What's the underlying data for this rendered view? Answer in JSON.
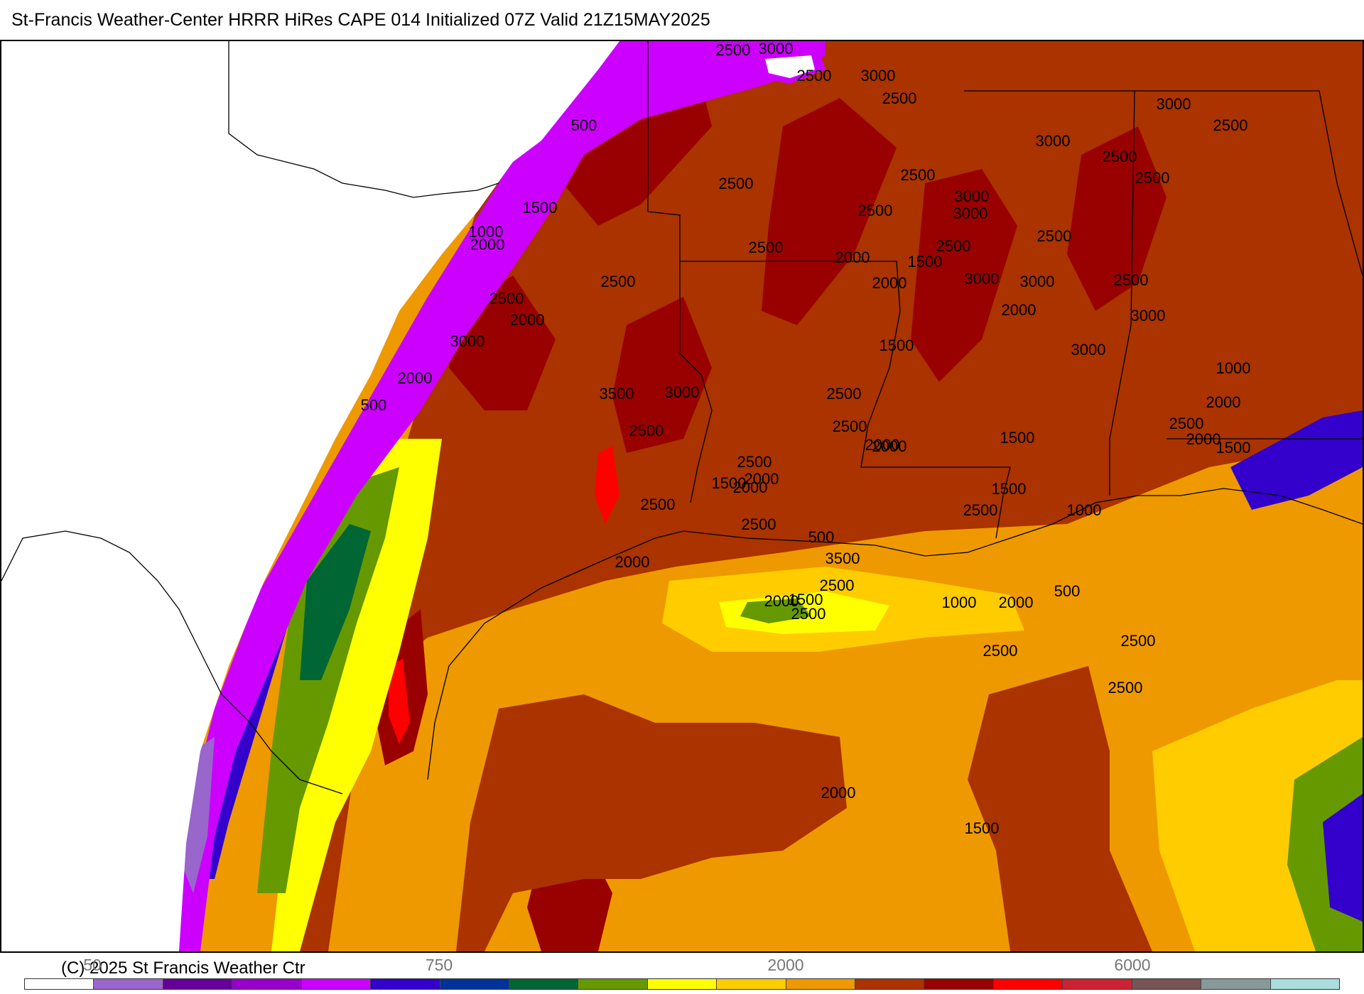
{
  "header": {
    "title": "St-Francis Weather-Center HRRR HiRes CAPE  014 Initialized  07Z Valid 21Z15MAY2025"
  },
  "footer": {
    "credit": "(C) 2025 St Francis Weather Ctr"
  },
  "colorbar": {
    "labels": [
      "50",
      "750",
      "2000",
      "6000"
    ],
    "colors": [
      "#ffffff",
      "#9966cc",
      "#660099",
      "#9900cc",
      "#cc00ff",
      "#3300cc",
      "#003399",
      "#006633",
      "#669900",
      "#ffff00",
      "#ffcc00",
      "#ee9900",
      "#aa3300",
      "#990000",
      "#ff0000",
      "#cc2233",
      "#775555",
      "#889999",
      "#aadddd"
    ]
  },
  "contour_labels": [
    "2500",
    "3000",
    "2500",
    "3000",
    "2500",
    "500",
    "1500",
    "1000",
    "2000",
    "2500",
    "2500",
    "2000",
    "3000",
    "2500",
    "2500",
    "2500",
    "3000",
    "3000",
    "2500",
    "2500",
    "2500",
    "3000",
    "3000",
    "2500",
    "3000",
    "3000",
    "3000",
    "2500",
    "3000",
    "2500",
    "2500",
    "2000",
    "2000",
    "2000",
    "500",
    "1500",
    "2000",
    "1500",
    "3500",
    "3000",
    "2500",
    "2500",
    "2500",
    "2000",
    "2500",
    "2000",
    "1500",
    "1000",
    "2000",
    "1500",
    "1000",
    "2000",
    "2500",
    "1500",
    "2500",
    "1500",
    "2000",
    "2000",
    "2500",
    "2500",
    "2000",
    "500",
    "3500",
    "2500",
    "1500",
    "2000",
    "2500",
    "2000",
    "1000",
    "500",
    "2500",
    "2500",
    "2500",
    "2000",
    "1500"
  ]
}
